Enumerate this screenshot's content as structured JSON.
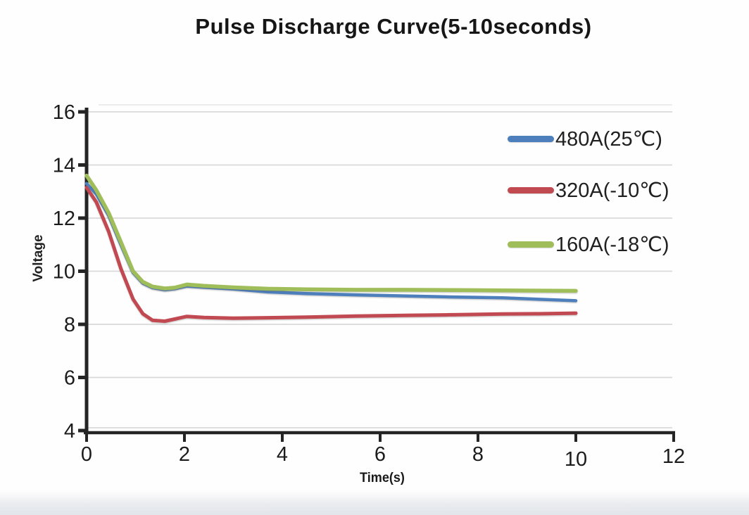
{
  "chart_data": {
    "type": "line",
    "title": "Pulse Discharge Curve(5-10seconds)",
    "xlabel": "Time(s)",
    "ylabel": "Voltage",
    "xlim": [
      0,
      12
    ],
    "ylim": [
      4,
      16
    ],
    "x_ticks": [
      0,
      2,
      4,
      6,
      8,
      10,
      12
    ],
    "y_ticks": [
      16,
      14,
      12,
      10,
      8,
      6,
      4
    ],
    "grid": "horizontal",
    "legend_position": "inside-top-right",
    "colors": {
      "grid": "#d9d9d9",
      "axis": "#242424",
      "text": "#1c1c1c"
    },
    "series": [
      {
        "name": "480A(25℃)",
        "color": "#4d7fbd",
        "points": [
          [
            0,
            13.3
          ],
          [
            0.2,
            12.9
          ],
          [
            0.45,
            12.1
          ],
          [
            0.7,
            11.0
          ],
          [
            0.95,
            9.95
          ],
          [
            1.15,
            9.55
          ],
          [
            1.35,
            9.38
          ],
          [
            1.6,
            9.3
          ],
          [
            1.8,
            9.34
          ],
          [
            2.05,
            9.44
          ],
          [
            2.4,
            9.4
          ],
          [
            3.0,
            9.33
          ],
          [
            3.7,
            9.22
          ],
          [
            4.5,
            9.16
          ],
          [
            5.5,
            9.11
          ],
          [
            6.5,
            9.07
          ],
          [
            7.5,
            9.03
          ],
          [
            8.5,
            9.0
          ],
          [
            9.3,
            8.94
          ],
          [
            10,
            8.89
          ]
        ]
      },
      {
        "name": "320A(-10℃)",
        "color": "#c14a51",
        "points": [
          [
            0,
            13.15
          ],
          [
            0.2,
            12.6
          ],
          [
            0.45,
            11.5
          ],
          [
            0.7,
            10.1
          ],
          [
            0.95,
            8.95
          ],
          [
            1.15,
            8.4
          ],
          [
            1.35,
            8.15
          ],
          [
            1.6,
            8.12
          ],
          [
            1.8,
            8.2
          ],
          [
            2.05,
            8.3
          ],
          [
            2.4,
            8.26
          ],
          [
            3.0,
            8.23
          ],
          [
            3.7,
            8.25
          ],
          [
            4.5,
            8.27
          ],
          [
            5.5,
            8.31
          ],
          [
            6.5,
            8.34
          ],
          [
            7.5,
            8.36
          ],
          [
            8.5,
            8.39
          ],
          [
            9.3,
            8.4
          ],
          [
            10,
            8.42
          ]
        ]
      },
      {
        "name": "160A(-18℃)",
        "color": "#9fbe5a",
        "points": [
          [
            0,
            13.6
          ],
          [
            0.2,
            13.05
          ],
          [
            0.45,
            12.2
          ],
          [
            0.7,
            11.1
          ],
          [
            0.95,
            10.0
          ],
          [
            1.15,
            9.6
          ],
          [
            1.35,
            9.42
          ],
          [
            1.6,
            9.35
          ],
          [
            1.8,
            9.38
          ],
          [
            2.05,
            9.5
          ],
          [
            2.4,
            9.45
          ],
          [
            3.0,
            9.39
          ],
          [
            3.7,
            9.34
          ],
          [
            4.5,
            9.32
          ],
          [
            5.5,
            9.3
          ],
          [
            6.5,
            9.3
          ],
          [
            7.5,
            9.29
          ],
          [
            8.5,
            9.28
          ],
          [
            9.3,
            9.27
          ],
          [
            10,
            9.26
          ]
        ]
      }
    ]
  }
}
